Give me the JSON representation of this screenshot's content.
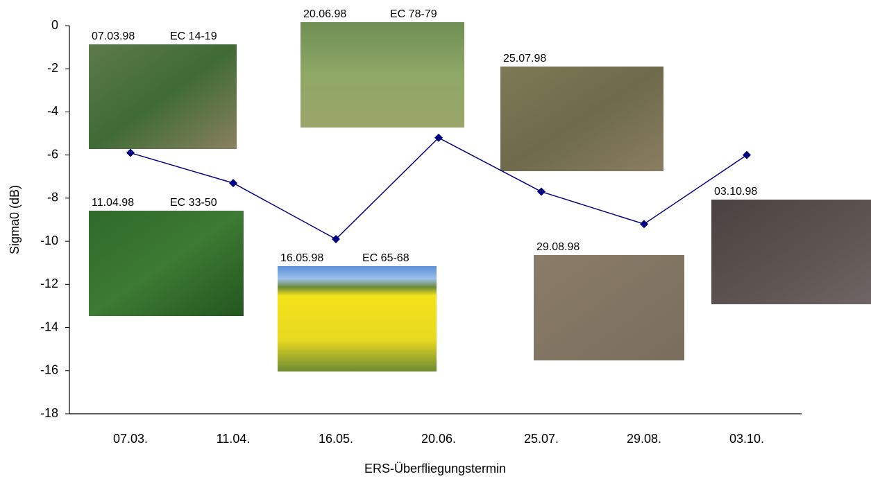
{
  "chart_data": {
    "type": "line",
    "x_label": "ERS-Überfliegungstermin",
    "y_label": "Sigma0 (dB)",
    "categories": [
      "07.03.",
      "11.04.",
      "16.05.",
      "20.06.",
      "25.07.",
      "29.08.",
      "03.10."
    ],
    "series": [
      {
        "color": "#000080",
        "values": [
          -5.9,
          -7.3,
          -9.9,
          -5.2,
          -7.7,
          -9.2,
          -6.0
        ]
      }
    ],
    "ylim": [
      -18,
      0
    ],
    "yticks": [
      -18,
      -16,
      -14,
      -12,
      -10,
      -8,
      -6,
      -4,
      -2,
      0
    ],
    "photos": [
      {
        "date": "07.03.98",
        "stage": "EC 14-19"
      },
      {
        "date": "11.04.98",
        "stage": "EC 33-50"
      },
      {
        "date": "16.05.98",
        "stage": "EC 65-68"
      },
      {
        "date": "20.06.98",
        "stage": "EC 78-79"
      },
      {
        "date": "25.07.98"
      },
      {
        "date": "29.08.98"
      },
      {
        "date": "03.10.98"
      }
    ]
  }
}
